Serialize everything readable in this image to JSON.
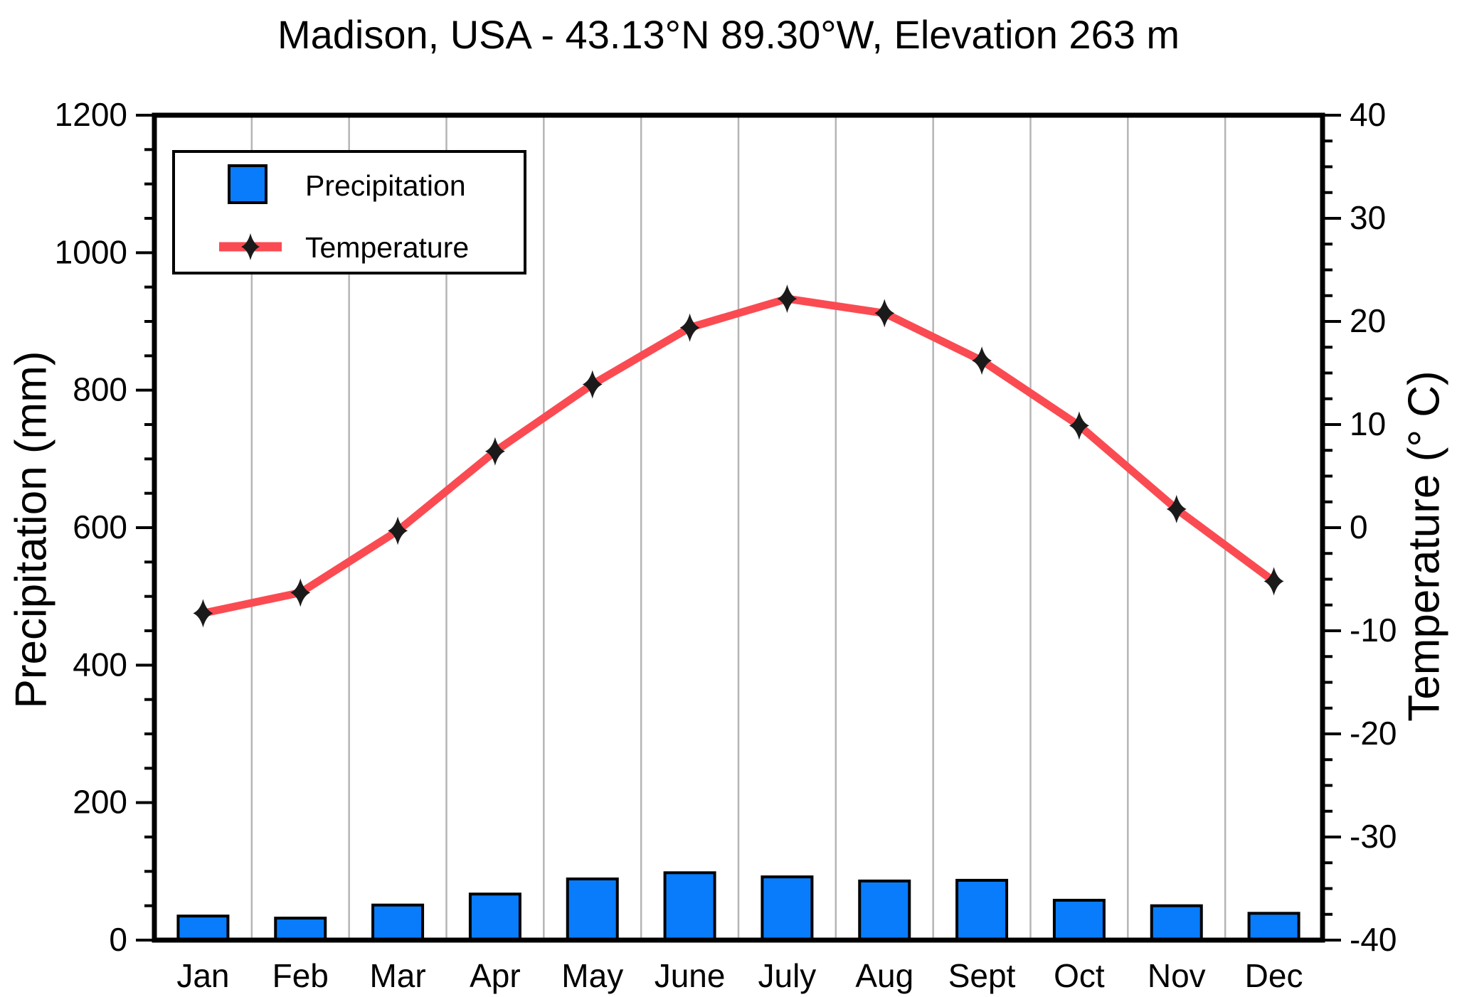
{
  "title": "Madison, USA - 43.13°N 89.30°W, Elevation 263 m",
  "legend": {
    "precipitation_label": "Precipitation",
    "temperature_label": "Temperature"
  },
  "chart_data": {
    "type": "bar+line combo (climograph)",
    "categories": [
      "Jan",
      "Feb",
      "Mar",
      "Apr",
      "May",
      "June",
      "July",
      "Aug",
      "Sept",
      "Oct",
      "Nov",
      "Dec"
    ],
    "series": [
      {
        "name": "Precipitation",
        "type": "bar",
        "axis": "left",
        "unit": "mm",
        "values": [
          35,
          32,
          51,
          67,
          89,
          98,
          92,
          86,
          87,
          58,
          50,
          39
        ]
      },
      {
        "name": "Temperature",
        "type": "line",
        "axis": "right",
        "unit": "°C",
        "marker": "four-point-star",
        "values": [
          -8.3,
          -6.3,
          -0.3,
          7.4,
          13.9,
          19.4,
          22.2,
          20.8,
          16.2,
          9.9,
          1.8,
          -5.2
        ]
      }
    ],
    "left_axis": {
      "label": "Precipitation (mm)",
      "min": 0,
      "max": 1200,
      "major_step": 200,
      "minor_step": 50,
      "tick_labels": [
        "0",
        "200",
        "400",
        "600",
        "800",
        "1000",
        "1200"
      ]
    },
    "right_axis": {
      "label": "Temperature (° C)",
      "min": -40,
      "max": 40,
      "major_step": 10,
      "minor_step": 2.5,
      "tick_labels": [
        "-40",
        "-30",
        "-20",
        "-10",
        "0",
        "10",
        "20",
        "30",
        "40"
      ]
    },
    "grid": "vertical lines at month boundaries only",
    "legend_position": "top-left inside plot",
    "colors": {
      "bar_fill": "#087cfa",
      "bar_stroke": "#000000",
      "line": "#fa4b52",
      "marker": "#1a1a1a",
      "grid": "#b5b5b5",
      "axis": "#000000",
      "background": "#ffffff",
      "text": "#000000"
    }
  }
}
